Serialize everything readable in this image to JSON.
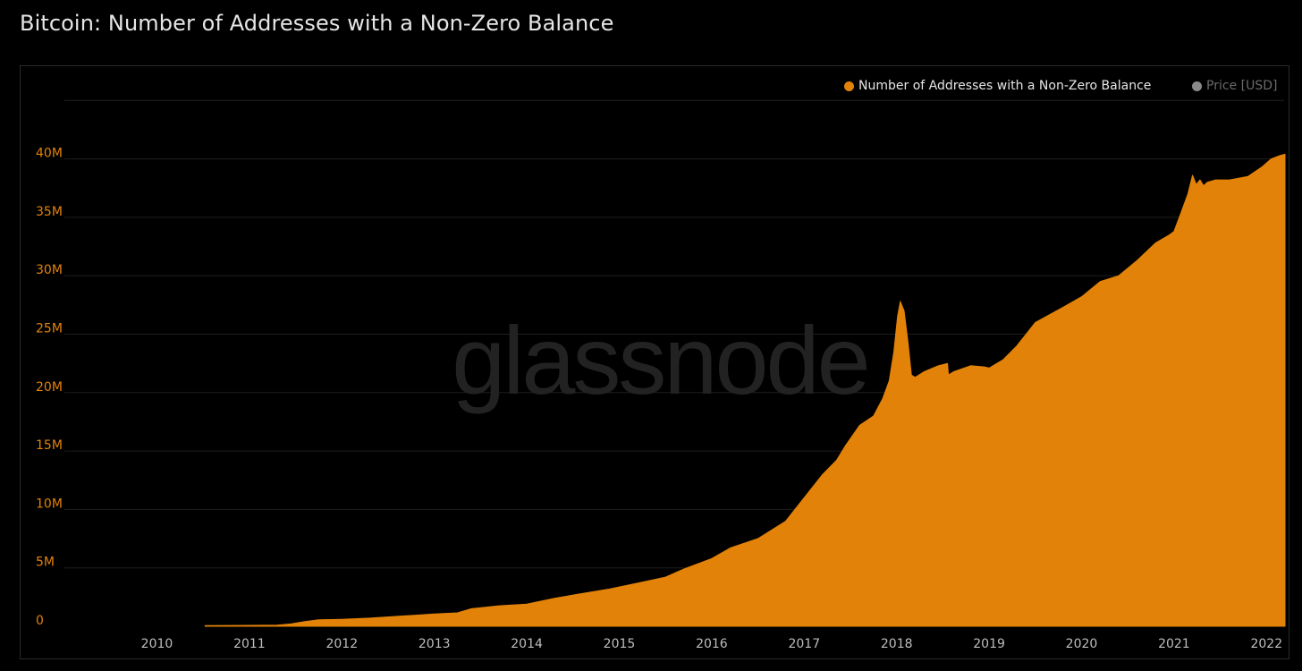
{
  "title": "Bitcoin: Number of Addresses with a Non-Zero Balance",
  "watermark": "glassnode",
  "legend": [
    {
      "label": "Number of Addresses with a Non-Zero Balance",
      "color": "#e38209",
      "active": true
    },
    {
      "label": "Price [USD]",
      "color": "#8a8a8a",
      "active": false
    }
  ],
  "colors": {
    "background": "#000000",
    "area": "#e38209",
    "grid": "#1e1e1e",
    "y_tick": "#e38209",
    "x_tick": "#bdbdbd",
    "watermark": "#222222"
  },
  "chart_data": {
    "type": "area",
    "title": "Bitcoin: Number of Addresses with a Non-Zero Balance",
    "xlabel": "",
    "ylabel": "",
    "x_ticks": [
      "2010",
      "2011",
      "2012",
      "2013",
      "2014",
      "2015",
      "2016",
      "2017",
      "2018",
      "2019",
      "2020",
      "2021",
      "2022"
    ],
    "y_ticks": [
      "0",
      "5M",
      "10M",
      "15M",
      "20M",
      "25M",
      "30M",
      "35M",
      "40M"
    ],
    "xlim": [
      2009.0,
      2022.2
    ],
    "ylim": [
      0,
      45000000
    ],
    "grid": true,
    "legend_position": "top-right",
    "series": [
      {
        "name": "Number of Addresses with a Non-Zero Balance",
        "x": [
          2010.52,
          2011.0,
          2011.3,
          2011.45,
          2011.6,
          2011.75,
          2012.0,
          2012.3,
          2012.6,
          2012.8,
          2013.0,
          2013.25,
          2013.4,
          2013.7,
          2014.0,
          2014.3,
          2014.6,
          2014.9,
          2015.2,
          2015.5,
          2015.7,
          2015.9,
          2016.0,
          2016.2,
          2016.5,
          2016.8,
          2017.0,
          2017.2,
          2017.35,
          2017.45,
          2017.6,
          2017.75,
          2017.85,
          2017.92,
          2017.97,
          2018.01,
          2018.04,
          2018.08,
          2018.12,
          2018.16,
          2018.2,
          2018.3,
          2018.45,
          2018.55,
          2018.56,
          2018.62,
          2018.8,
          2018.95,
          2019.0,
          2019.15,
          2019.3,
          2019.5,
          2019.8,
          2020.0,
          2020.2,
          2020.4,
          2020.6,
          2020.8,
          2020.95,
          2021.0,
          2021.08,
          2021.15,
          2021.2,
          2021.24,
          2021.28,
          2021.32,
          2021.36,
          2021.45,
          2021.6,
          2021.8,
          2021.95,
          2022.05,
          2022.15,
          2022.2
        ],
        "values": [
          50000,
          80000,
          100000,
          200000,
          400000,
          550000,
          600000,
          700000,
          850000,
          950000,
          1050000,
          1150000,
          1500000,
          1750000,
          1900000,
          2400000,
          2800000,
          3200000,
          3700000,
          4200000,
          4900000,
          5500000,
          5800000,
          6700000,
          7500000,
          9000000,
          11000000,
          13000000,
          14200000,
          15500000,
          17200000,
          18000000,
          19500000,
          21000000,
          23500000,
          26500000,
          27800000,
          27000000,
          24500000,
          21500000,
          21300000,
          21800000,
          22300000,
          22500000,
          21500000,
          21800000,
          22300000,
          22200000,
          22100000,
          22800000,
          24000000,
          26000000,
          27300000,
          28200000,
          29500000,
          30000000,
          31300000,
          32800000,
          33500000,
          33800000,
          35500000,
          37000000,
          38600000,
          37800000,
          38200000,
          37700000,
          38000000,
          38200000,
          38200000,
          38500000,
          39300000,
          40000000,
          40300000,
          40400000
        ]
      }
    ]
  }
}
